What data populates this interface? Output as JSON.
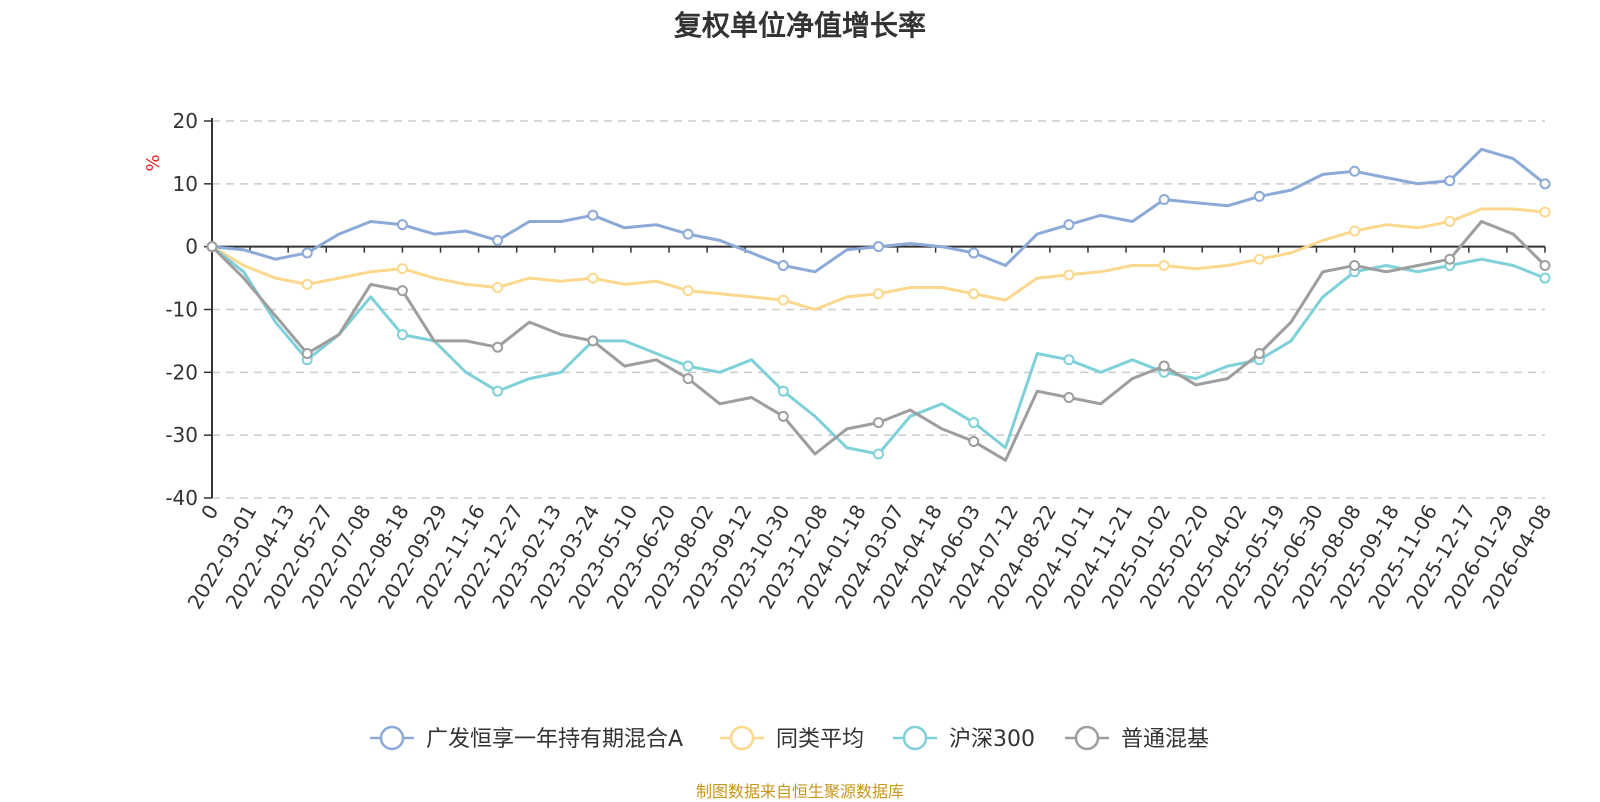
{
  "title": "复权单位净值增长率",
  "source": "制图数据来自恒生聚源数据库",
  "chart_data": {
    "type": "line",
    "title": "复权单位净值增长率",
    "ylabel": "%",
    "ylim": [
      -40,
      20
    ],
    "yticks": [
      20,
      10,
      0,
      -10,
      -20,
      -30,
      -40
    ],
    "grid": true,
    "legend_position": "bottom",
    "x_tick_labels": [
      "0",
      "2022-03-01",
      "2022-04-13",
      "2022-05-27",
      "2022-07-08",
      "2022-08-18",
      "2022-09-29",
      "2022-11-16",
      "2022-12-27",
      "2023-02-13",
      "2023-03-24",
      "2023-05-10",
      "2023-06-20",
      "2023-08-02",
      "2023-09-12",
      "2023-10-30",
      "2023-12-08",
      "2024-01-18",
      "2024-03-07",
      "2024-04-18",
      "2024-06-03",
      "2024-07-12",
      "2024-08-22",
      "2024-10-11",
      "2024-11-21",
      "2025-01-02",
      "2025-02-20",
      "2025-04-02",
      "2025-05-19",
      "2025-06-30",
      "2025-08-08",
      "2025-09-18",
      "2025-11-06",
      "2025-12-17",
      "2026-01-29",
      "2026-04-08"
    ],
    "series": [
      {
        "name": "广发恒享一年持有期混合A",
        "color": "#8caad8",
        "values": [
          0,
          -0.5,
          -2,
          -1,
          2,
          4,
          3.5,
          2,
          2.5,
          1,
          4,
          4,
          5,
          3,
          3.5,
          2,
          1,
          -1,
          -3,
          -4,
          -0.5,
          0,
          0.5,
          0,
          -1,
          -3,
          2,
          3.5,
          5,
          4,
          7.5,
          7,
          6.5,
          8,
          9,
          11.5,
          12,
          11,
          10,
          10.5,
          15.5,
          14,
          10
        ]
      },
      {
        "name": "同类平均",
        "color": "#fbd88e",
        "values": [
          0,
          -3,
          -5,
          -6,
          -5,
          -4,
          -3.5,
          -5,
          -6,
          -6.5,
          -5,
          -5.5,
          -5,
          -6,
          -5.5,
          -7,
          -7.5,
          -8,
          -8.5,
          -10,
          -8,
          -7.5,
          -6.5,
          -6.5,
          -7.5,
          -8.5,
          -5,
          -4.5,
          -4,
          -3,
          -3,
          -3.5,
          -3,
          -2,
          -1,
          1,
          2.5,
          3.5,
          3,
          4,
          6,
          6,
          5.5
        ]
      },
      {
        "name": "沪深300",
        "color": "#7fd1d9",
        "values": [
          0,
          -4,
          -12,
          -18,
          -14,
          -8,
          -14,
          -15,
          -20,
          -23,
          -21,
          -20,
          -15,
          -15,
          -17,
          -19,
          -20,
          -18,
          -23,
          -27,
          -32,
          -33,
          -27,
          -25,
          -28,
          -32,
          -17,
          -18,
          -20,
          -18,
          -20,
          -21,
          -19,
          -18,
          -15,
          -8,
          -4,
          -3,
          -4,
          -3,
          -2,
          -3,
          -5
        ]
      },
      {
        "name": "普通混基",
        "color": "#9e9e9e",
        "values": [
          0,
          -5,
          -11,
          -17,
          -14,
          -6,
          -7,
          -15,
          -15,
          -16,
          -12,
          -14,
          -15,
          -19,
          -18,
          -21,
          -25,
          -24,
          -27,
          -33,
          -29,
          -28,
          -26,
          -29,
          -31,
          -34,
          -23,
          -24,
          -25,
          -21,
          -19,
          -22,
          -21,
          -17,
          -12,
          -4,
          -3,
          -4,
          -3,
          -2,
          4,
          2,
          -3
        ]
      }
    ]
  }
}
